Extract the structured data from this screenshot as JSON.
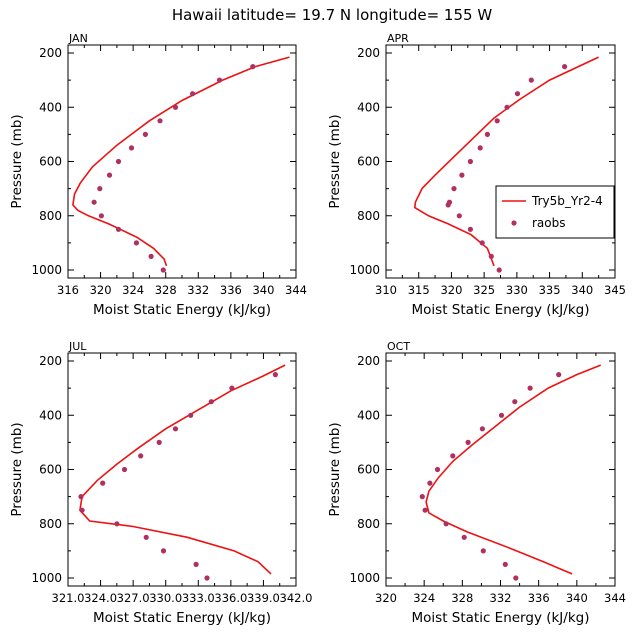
{
  "title": "Hawaii  latitude= 19.7 N longitude= 155 W",
  "legend": {
    "model": "Try5b_Yr2-4",
    "obs": "raobs"
  },
  "chart_data": [
    {
      "type": "line",
      "panel": "JAN",
      "xlabel": "Moist Static Energy (kJ/kg)",
      "ylabel": "Pressure (mb)",
      "xlim": [
        316,
        344
      ],
      "ylim": [
        1000,
        200
      ],
      "xticks": [
        "316",
        "320",
        "324",
        "328",
        "332",
        "336",
        "340",
        "344"
      ],
      "yticks": [
        "200",
        "400",
        "600",
        "800",
        "1000"
      ],
      "series": [
        {
          "name": "Try5b_Yr2-4",
          "x": [
            343.2,
            339,
            335,
            330,
            326,
            322,
            319,
            317.5,
            316.8,
            316.6,
            317.2,
            318.5,
            321,
            324.5,
            326.5,
            327.8,
            328.1
          ],
          "y": [
            215,
            250,
            300,
            375,
            450,
            540,
            620,
            680,
            720,
            760,
            780,
            800,
            830,
            880,
            920,
            960,
            985
          ]
        },
        {
          "name": "raobs",
          "x": [
            338.7,
            334.6,
            331.3,
            329.2,
            327.3,
            325.5,
            323.8,
            322.2,
            321.1,
            319.9,
            319.2,
            320.1,
            322.2,
            324.4,
            326.2,
            327.7
          ],
          "y": [
            250,
            300,
            350,
            400,
            450,
            500,
            550,
            600,
            650,
            700,
            750,
            800,
            850,
            900,
            950,
            1000
          ]
        }
      ],
      "legend": false
    },
    {
      "type": "line",
      "panel": "APR",
      "xlabel": "Moist Static Energy (kJ/kg)",
      "ylabel": "Pressure (mb)",
      "xlim": [
        310,
        345
      ],
      "ylim": [
        1000,
        200
      ],
      "xticks": [
        "310",
        "315",
        "320",
        "325",
        "330",
        "335",
        "340",
        "345"
      ],
      "yticks": [
        "200",
        "400",
        "600",
        "800",
        "1000"
      ],
      "series": [
        {
          "name": "Try5b_Yr2-4",
          "x": [
            342.5,
            339,
            335,
            330.5,
            326.5,
            323.5,
            320.5,
            317.5,
            315.5,
            314.5,
            314.4,
            316.5,
            319.5,
            323,
            325.5,
            326.5
          ],
          "y": [
            215,
            255,
            300,
            370,
            440,
            510,
            580,
            650,
            700,
            750,
            770,
            800,
            830,
            870,
            920,
            985
          ]
        },
        {
          "name": "raobs",
          "x": [
            337.3,
            332.2,
            330.1,
            328.5,
            327,
            325.5,
            324.4,
            322.9,
            321.6,
            320.4,
            319.7,
            319.5,
            321.2,
            322.9,
            324.7,
            326.1,
            327.3
          ],
          "y": [
            250,
            300,
            350,
            400,
            450,
            500,
            550,
            600,
            650,
            700,
            750,
            760,
            800,
            850,
            900,
            950,
            1000
          ]
        }
      ],
      "legend": true
    },
    {
      "type": "line",
      "panel": "JUL",
      "xlabel": "Moist Static Energy (kJ/kg)",
      "ylabel": "Pressure (mb)",
      "xlim": [
        321,
        342
      ],
      "ylim": [
        1000,
        200
      ],
      "xticks": [
        "321.0",
        "324.0",
        "327.0",
        "330.0",
        "333.0",
        "336.0",
        "339.0",
        "342.0"
      ],
      "yticks": [
        "200",
        "400",
        "600",
        "800",
        "1000"
      ],
      "series": [
        {
          "name": "Try5b_Yr2-4",
          "x": [
            341,
            339,
            336,
            333,
            330,
            327.5,
            325.5,
            323.7,
            322.3,
            322.1,
            323,
            327,
            332,
            336.3,
            338.5,
            339.7
          ],
          "y": [
            215,
            255,
            310,
            380,
            450,
            520,
            580,
            640,
            700,
            750,
            790,
            810,
            850,
            900,
            940,
            985
          ]
        },
        {
          "name": "raobs",
          "x": [
            340.1,
            336.1,
            334.2,
            332.3,
            330.9,
            329.4,
            327.7,
            326.2,
            324.2,
            322.2,
            322.3,
            325.5,
            328.2,
            329.8,
            332.8,
            333.8
          ],
          "y": [
            250,
            300,
            350,
            400,
            450,
            500,
            550,
            600,
            650,
            700,
            750,
            800,
            850,
            900,
            950,
            1000
          ]
        }
      ],
      "legend": false
    },
    {
      "type": "line",
      "panel": "OCT",
      "xlabel": "Moist Static Energy (kJ/kg)",
      "ylabel": "Pressure (mb)",
      "xlim": [
        320,
        344
      ],
      "ylim": [
        1000,
        200
      ],
      "xticks": [
        "320",
        "324",
        "328",
        "332",
        "336",
        "340",
        "344"
      ],
      "yticks": [
        "200",
        "400",
        "600",
        "800",
        "1000"
      ],
      "series": [
        {
          "name": "Try5b_Yr2-4",
          "x": [
            342.5,
            340,
            337,
            334,
            331.5,
            329,
            327,
            325.5,
            324.5,
            324.2,
            324.5,
            326,
            328.5,
            333,
            336.5,
            338.5,
            339.5
          ],
          "y": [
            215,
            250,
            300,
            370,
            440,
            510,
            570,
            630,
            680,
            720,
            760,
            790,
            830,
            890,
            940,
            970,
            985
          ]
        },
        {
          "name": "raobs",
          "x": [
            338.1,
            335.1,
            333.5,
            332.1,
            330.1,
            328.6,
            327,
            325.4,
            324.6,
            323.8,
            324.1,
            326.3,
            328.2,
            330.2,
            332.5,
            333.6
          ],
          "y": [
            250,
            300,
            350,
            400,
            450,
            500,
            550,
            600,
            650,
            700,
            750,
            800,
            850,
            900,
            950,
            1000
          ]
        }
      ],
      "legend": false
    }
  ]
}
